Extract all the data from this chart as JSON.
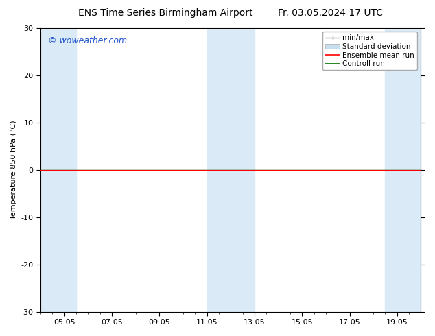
{
  "title_left": "ENS Time Series Birmingham Airport",
  "title_right": "Fr. 03.05.2024 17 UTC",
  "ylabel": "Temperature 850 hPa (°C)",
  "watermark": "© woweather.com",
  "watermark_color": "#2255cc",
  "ylim": [
    -30,
    30
  ],
  "yticks": [
    -30,
    -20,
    -10,
    0,
    10,
    20,
    30
  ],
  "xtick_labels": [
    "05.05",
    "07.05",
    "09.05",
    "11.05",
    "13.05",
    "15.05",
    "17.05",
    "19.05"
  ],
  "xtick_positions": [
    1,
    3,
    5,
    7,
    9,
    11,
    13,
    15
  ],
  "xlim_start": 0,
  "xlim_end": 16,
  "background_color": "#ffffff",
  "plot_bg_color": "#ffffff",
  "shaded_bands": [
    {
      "x_start": 0.0,
      "x_end": 1.5,
      "color": "#daeaf7"
    },
    {
      "x_start": 7.0,
      "x_end": 9.0,
      "color": "#daeaf7"
    },
    {
      "x_start": 14.5,
      "x_end": 16.0,
      "color": "#daeaf7"
    }
  ],
  "zero_line_y": 0,
  "zero_line_color": "#000000",
  "control_run_y": -0.15,
  "control_run_color": "#007000",
  "ensemble_mean_color": "#ff0000",
  "legend_items": [
    {
      "label": "min/max"
    },
    {
      "label": "Standard deviation"
    },
    {
      "label": "Ensemble mean run"
    },
    {
      "label": "Controll run"
    }
  ],
  "title_fontsize": 10,
  "axis_fontsize": 8,
  "tick_fontsize": 8,
  "legend_fontsize": 7.5,
  "watermark_fontsize": 9,
  "outer_border_color": "#000000",
  "minor_tick_count": 4
}
